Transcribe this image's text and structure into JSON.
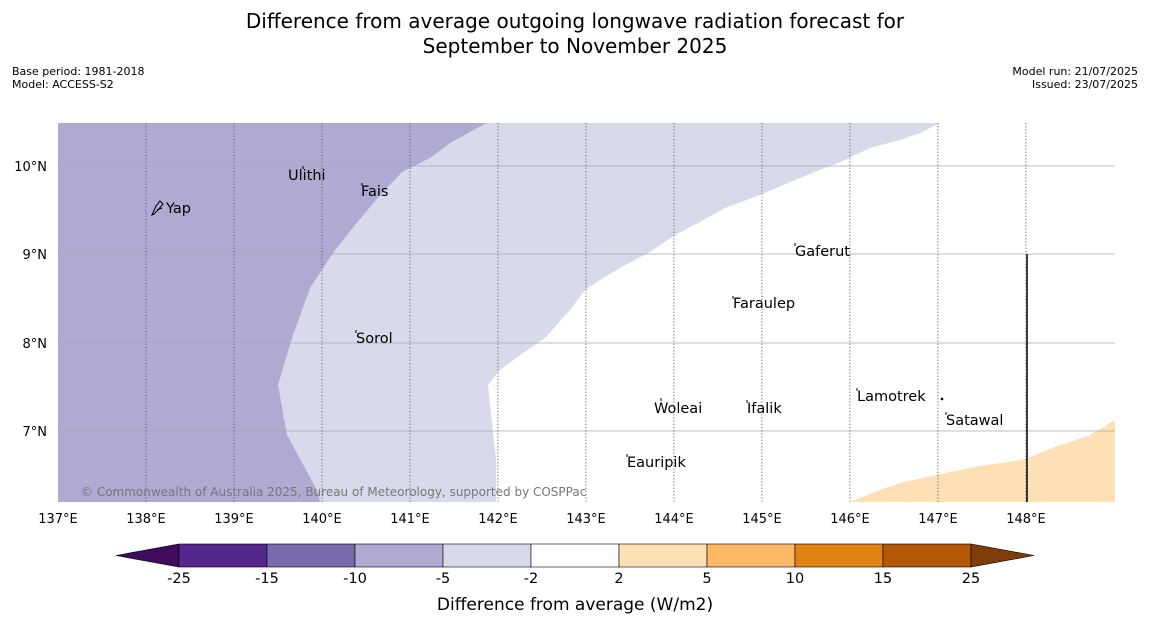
{
  "title": {
    "line1": "Difference from average outgoing longwave radiation forecast for",
    "line2": "September to November 2025"
  },
  "meta": {
    "base_period": "Base period: 1981-2018",
    "model": "Model: ACCESS-S2",
    "model_run": "Model run: 21/07/2025",
    "issued": "Issued: 23/07/2025"
  },
  "map": {
    "lon_labels": [
      "137°E",
      "138°E",
      "139°E",
      "140°E",
      "141°E",
      "142°E",
      "143°E",
      "144°E",
      "145°E",
      "146°E",
      "147°E",
      "148°E"
    ],
    "lat_labels": [
      "10°N",
      "9°N",
      "8°N",
      "7°N"
    ],
    "copyright": "© Commonwealth of Australia 2025, Bureau of Meteorology, supported by COSPPac",
    "places": [
      "Yap",
      "Ulithi",
      "Fais",
      "Gaferut",
      "Faraulep",
      "Sorol",
      "Woleai",
      "Ifalik",
      "Lamotrek",
      "Satawal",
      "Eauripik"
    ]
  },
  "legend": {
    "title": "Difference from average (W/m2)",
    "ticks": [
      "-25",
      "-15",
      "-10",
      "-5",
      "-2",
      "2",
      "5",
      "10",
      "15",
      "25"
    ],
    "colors": [
      "#3f0b5c",
      "#54278f",
      "#7b6aab",
      "#b0a9d1",
      "#d8d9eb",
      "#ffffff",
      "#fee0b6",
      "#fdb863",
      "#e08214",
      "#b35806",
      "#7f3b08"
    ]
  },
  "colors": {
    "band_neg10": "#b0a9d1",
    "band_neg5": "#d8d9eb",
    "band_pos5": "#fee0b6"
  }
}
